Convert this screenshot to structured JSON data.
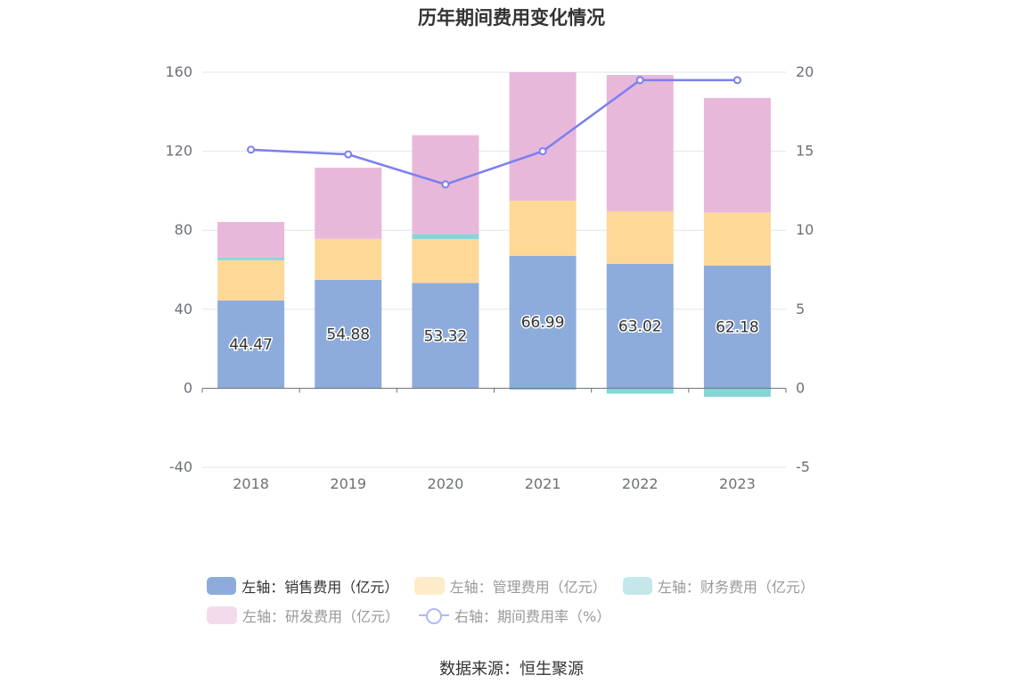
{
  "chart_data": {
    "type": "bar",
    "title": "历年期间费用变化情况",
    "categories": [
      "2018",
      "2019",
      "2020",
      "2021",
      "2022",
      "2023"
    ],
    "left_axis": {
      "ylim": [
        -40,
        160
      ],
      "ticks": [
        "-40",
        "0",
        "40",
        "80",
        "120",
        "160"
      ]
    },
    "right_axis": {
      "ylim": [
        -5,
        20
      ],
      "ticks": [
        "-5",
        "0",
        "5",
        "10",
        "15",
        "20"
      ]
    },
    "stacked": true,
    "series": [
      {
        "name": "左轴：销售费用（亿元）",
        "axis": "left",
        "kind": "bar",
        "color": "#8eacdb",
        "values": [
          44.47,
          54.88,
          53.32,
          66.99,
          63.02,
          62.18
        ],
        "labels": [
          "44.47",
          "54.88",
          "53.32",
          "66.99",
          "63.02",
          "62.18"
        ]
      },
      {
        "name": "左轴：管理费用（亿元）",
        "axis": "left",
        "kind": "bar",
        "color": "#fed897",
        "values": [
          20.4,
          20.8,
          22.2,
          28.0,
          26.6,
          26.8
        ]
      },
      {
        "name": "左轴：财务费用（亿元）",
        "axis": "left",
        "kind": "bar",
        "color": "#85d5d8",
        "values": [
          1.3,
          -0.3,
          2.6,
          -0.8,
          -2.7,
          -4.3
        ]
      },
      {
        "name": "左轴：研发费用（亿元）",
        "axis": "left",
        "kind": "bar",
        "color": "#e7b8da",
        "values": [
          18.0,
          36.0,
          50.0,
          65.0,
          69.0,
          58.0
        ]
      },
      {
        "name": "右轴：期间费用率（%）",
        "axis": "right",
        "kind": "line",
        "color": "#7b7ff0",
        "values": [
          15.1,
          14.8,
          12.9,
          15.0,
          19.5,
          19.5
        ]
      }
    ],
    "grid": true,
    "legend_position": "bottom"
  },
  "legend": {
    "items": [
      {
        "label": "左轴：销售费用（亿元）",
        "color": "#8eacdb",
        "active": true
      },
      {
        "label": "左轴：管理费用（亿元）",
        "color": "#feebc9",
        "active": false
      },
      {
        "label": "左轴：财务费用（亿元）",
        "color": "#c4e8ea",
        "active": false
      },
      {
        "label": "左轴：研发费用（亿元）",
        "color": "#f3dbec",
        "active": false
      },
      {
        "label": "右轴：期间费用率（%）",
        "color": "#b3b7f5",
        "active": false
      }
    ]
  },
  "footer": {
    "source": "数据来源：恒生聚源"
  }
}
